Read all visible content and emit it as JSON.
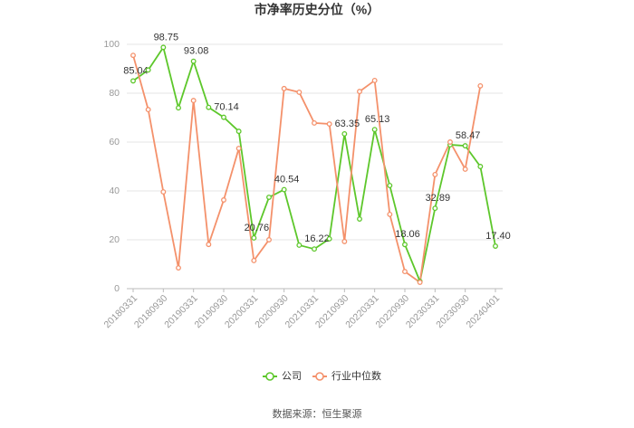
{
  "chart_data": {
    "type": "line",
    "title": "市净率历史分位（%）",
    "categories": [
      "20180331",
      null,
      "20180930",
      null,
      "20190331",
      null,
      "20190930",
      null,
      "20200331",
      null,
      "20200930",
      null,
      "20210331",
      null,
      "20210930",
      null,
      "20220331",
      null,
      "20220930",
      null,
      "20230331",
      null,
      "20230930",
      null,
      "20240401"
    ],
    "series": [
      {
        "name": "公司",
        "color": "#5dc72b",
        "values": [
          85.04,
          89.5,
          98.75,
          74,
          93.08,
          74.2,
          70.14,
          64.4,
          20.76,
          37.4,
          40.54,
          17.8,
          16.22,
          20.4,
          63.35,
          28.5,
          65.13,
          42.2,
          18.06,
          3,
          32.89,
          58.9,
          58.47,
          50,
          17.4
        ],
        "value_labels": [
          "85.04",
          null,
          "98.75",
          null,
          "93.08",
          null,
          "70.14",
          null,
          "20.76",
          null,
          "40.54",
          null,
          "16.22",
          null,
          "63.35",
          null,
          "65.13",
          null,
          "18.06",
          null,
          "32.89",
          null,
          "58.47",
          null,
          "17.40"
        ]
      },
      {
        "name": "行业中位数",
        "color": "#f4916b",
        "values": [
          95.5,
          73.3,
          39.6,
          8.5,
          77,
          18.1,
          36.3,
          57.4,
          11.5,
          20,
          81.9,
          80.4,
          67.8,
          67.4,
          19.3,
          80.7,
          85.2,
          30.4,
          7,
          2.6,
          46.7,
          60,
          48.9,
          83,
          null
        ]
      }
    ],
    "ylim": [
      0,
      100
    ],
    "yticks": [
      0,
      20,
      40,
      60,
      80,
      100
    ],
    "grid": true
  },
  "source": "数据来源：恒生聚源"
}
